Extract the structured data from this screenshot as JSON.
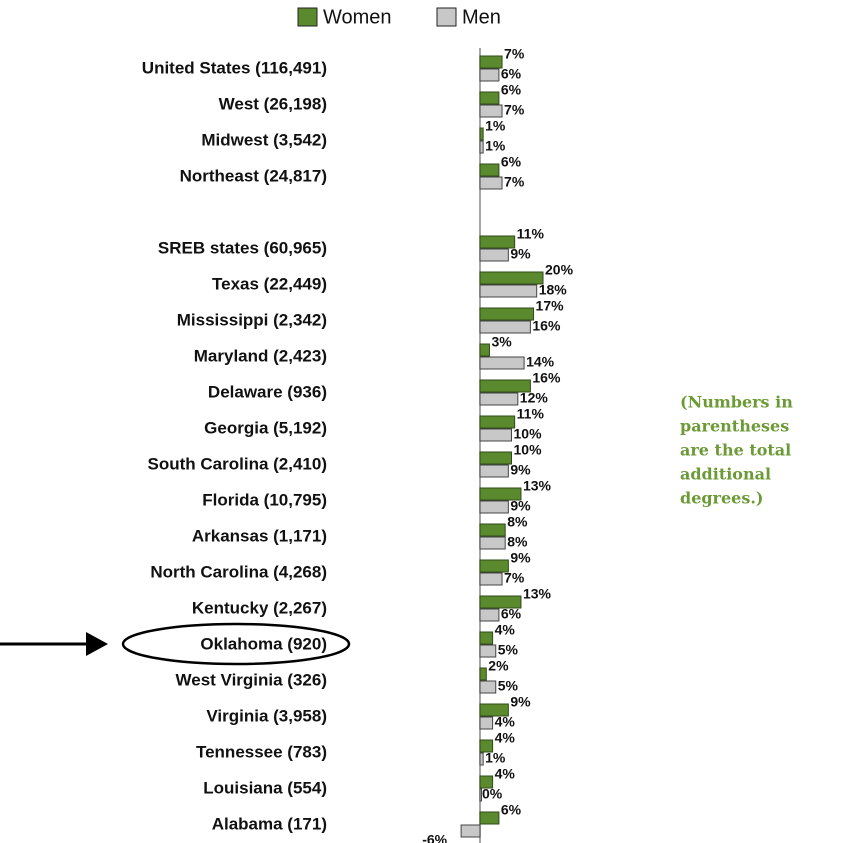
{
  "chart_data": {
    "type": "bar",
    "orientation": "horizontal",
    "categories": [
      "United States (116,491)",
      "West (26,198)",
      "Midwest (3,542)",
      "Northeast (24,817)",
      null,
      "SREB states (60,965)",
      "Texas (22,449)",
      "Mississippi (2,342)",
      "Maryland (2,423)",
      "Delaware (936)",
      "Georgia (5,192)",
      "South Carolina (2,410)",
      "Florida (10,795)",
      "Arkansas (1,171)",
      "North Carolina (4,268)",
      "Kentucky (2,267)",
      "Oklahoma (920)",
      "West Virginia (326)",
      "Virginia (3,958)",
      "Tennessee (783)",
      "Louisiana (554)",
      "Alabama (171)"
    ],
    "series": [
      {
        "name": "Women",
        "color": "#5b8a2e",
        "values": [
          7,
          6,
          1,
          6,
          null,
          11,
          20,
          17,
          3,
          16,
          11,
          10,
          13,
          8,
          9,
          13,
          4,
          2,
          9,
          4,
          4,
          6
        ],
        "value_labels": [
          "7%",
          "6%",
          "1%",
          "6%",
          null,
          "11%",
          "20%",
          "17%",
          "3%",
          "16%",
          "11%",
          "10%",
          "13%",
          "8%",
          "9%",
          "13%",
          "4%",
          "2%",
          "9%",
          "4%",
          "4%",
          "6%"
        ]
      },
      {
        "name": "Men",
        "color": "#c8c8c8",
        "values": [
          6,
          7,
          1,
          7,
          null,
          9,
          18,
          16,
          14,
          12,
          10,
          9,
          9,
          8,
          7,
          6,
          5,
          5,
          4,
          1,
          0,
          -6
        ],
        "value_labels": [
          "6%",
          "7%",
          "1%",
          "7%",
          null,
          "9%",
          "18%",
          "16%",
          "14%",
          "12%",
          "10%",
          "9%",
          "9%",
          "8%",
          "7%",
          "6%",
          "5%",
          "5%",
          "4%",
          "1%",
          "0%",
          "-6%"
        ]
      }
    ],
    "xlim": [
      -10,
      30
    ],
    "legend": "top",
    "annotation": [
      "(Numbers in",
      "parentheses",
      "are the total",
      "additional",
      "degrees.)"
    ],
    "annotation_color": "#6b9a36"
  }
}
